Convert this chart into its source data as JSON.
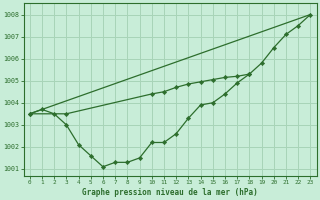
{
  "title": "Graphe pression niveau de la mer (hPa)",
  "background_color": "#c8edd8",
  "grid_color": "#a8d4b8",
  "line_color": "#2d6e2d",
  "marker_color": "#2d6e2d",
  "xlim": [
    -0.5,
    23.5
  ],
  "ylim": [
    1000.7,
    1008.5
  ],
  "yticks": [
    1001,
    1002,
    1003,
    1004,
    1005,
    1006,
    1007,
    1008
  ],
  "xticks": [
    0,
    1,
    2,
    3,
    4,
    5,
    6,
    7,
    8,
    9,
    10,
    11,
    12,
    13,
    14,
    15,
    16,
    17,
    18,
    19,
    20,
    21,
    22,
    23
  ],
  "series1_x": [
    0,
    1,
    2,
    3,
    4,
    5,
    6,
    7,
    8,
    9,
    10,
    11,
    12,
    13,
    14,
    15,
    16,
    17,
    18,
    19,
    20,
    21,
    22,
    23
  ],
  "series1_y": [
    1003.5,
    1003.7,
    1003.5,
    1003.0,
    1002.1,
    1001.6,
    1001.1,
    1001.3,
    1001.3,
    1001.5,
    1002.2,
    1002.2,
    1002.6,
    1003.3,
    1003.9,
    1004.0,
    1004.4,
    1004.9,
    1005.3,
    1005.8,
    1006.5,
    1007.1,
    1007.5,
    1008.0
  ],
  "series2_x": [
    0,
    3,
    10,
    11,
    12,
    13,
    14,
    15,
    16,
    17,
    18
  ],
  "series2_y": [
    1003.5,
    1003.5,
    1004.4,
    1004.5,
    1004.7,
    1004.85,
    1004.95,
    1005.05,
    1005.15,
    1005.2,
    1005.3
  ],
  "series3_x": [
    0,
    23
  ],
  "series3_y": [
    1003.5,
    1008.0
  ]
}
